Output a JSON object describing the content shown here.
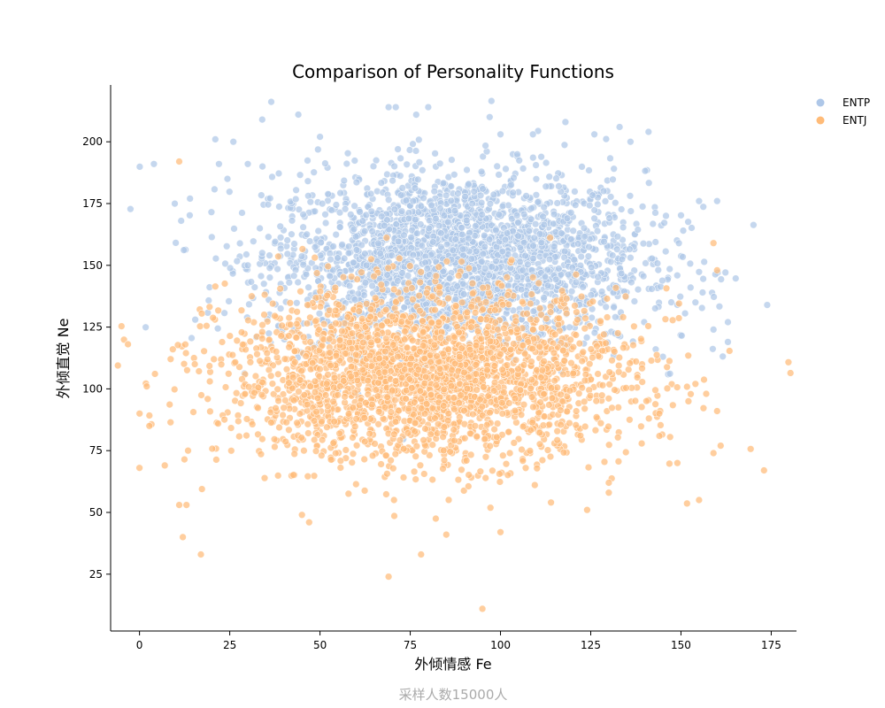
{
  "chart_data": {
    "type": "scatter",
    "title": "Comparison of Personality Functions",
    "xlabel": "外倾情感 Fe",
    "ylabel": "外倾直觉 Ne",
    "footnote": "采样人数15000人",
    "xlim": [
      -8,
      182
    ],
    "ylim": [
      2,
      223
    ],
    "x_ticks": [
      0,
      25,
      50,
      75,
      100,
      125,
      150,
      175
    ],
    "y_ticks": [
      25,
      50,
      75,
      100,
      125,
      150,
      175,
      200
    ],
    "grid": false,
    "legend_position": "top-right",
    "series": [
      {
        "name": "ENTP",
        "color": "#aec7e8",
        "center": [
          88,
          152
        ],
        "spread": [
          26,
          18
        ],
        "sample_points": [
          [
            4,
            191
          ],
          [
            14,
            177
          ],
          [
            21,
            201
          ],
          [
            26,
            200
          ],
          [
            34,
            209
          ],
          [
            44,
            211
          ],
          [
            69,
            214
          ],
          [
            71,
            214
          ],
          [
            80,
            214
          ],
          [
            97,
            210
          ],
          [
            118,
            208
          ],
          [
            141,
            204
          ],
          [
            22,
            191
          ],
          [
            30,
            191
          ],
          [
            50,
            202
          ],
          [
            100,
            203
          ],
          [
            109,
            203
          ],
          [
            126,
            203
          ],
          [
            133,
            206
          ],
          [
            136,
            200
          ],
          [
            155,
            176
          ],
          [
            160,
            176
          ],
          [
            163,
            127
          ],
          [
            159,
            124
          ],
          [
            163,
            119
          ],
          [
            143,
            116
          ],
          [
            145,
            113
          ],
          [
            149,
            134
          ],
          [
            154,
            135
          ],
          [
            156,
            139
          ],
          [
            30,
            150
          ],
          [
            34,
            155
          ]
        ]
      },
      {
        "name": "ENTJ",
        "color": "#ffbb78",
        "center": [
          80,
          105
        ],
        "spread": [
          28,
          17
        ],
        "sample_points": [
          [
            0,
            68
          ],
          [
            2,
            101
          ],
          [
            7,
            69
          ],
          [
            11,
            53
          ],
          [
            13,
            53
          ],
          [
            12,
            40
          ],
          [
            17,
            33
          ],
          [
            11,
            192
          ],
          [
            69,
            24
          ],
          [
            95,
            11
          ],
          [
            100,
            42
          ],
          [
            78,
            33
          ],
          [
            85,
            41
          ],
          [
            173,
            67
          ],
          [
            161,
            77
          ],
          [
            155,
            55
          ],
          [
            149,
            70
          ],
          [
            159,
            74
          ],
          [
            160,
            91
          ],
          [
            154,
            102
          ],
          [
            157,
            98
          ],
          [
            159,
            159
          ],
          [
            160,
            148
          ],
          [
            144,
            90
          ],
          [
            45,
            49
          ],
          [
            47,
            46
          ],
          [
            124,
            51
          ],
          [
            114,
            54
          ],
          [
            130,
            58
          ],
          [
            130,
            62
          ]
        ]
      }
    ]
  }
}
